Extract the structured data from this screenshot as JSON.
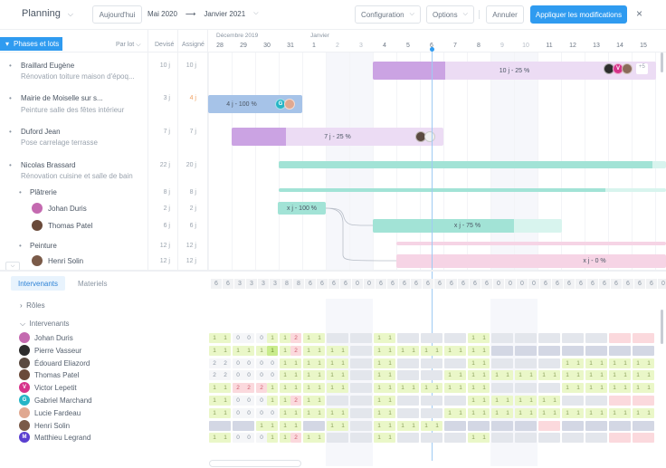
{
  "header": {
    "title": "Planning",
    "today_button": "Aujourd'hui",
    "range_start": "Mai 2020",
    "range_arrow": "⟶",
    "range_end": "Janvier 2021",
    "configuration_button": "Configuration",
    "options_button": "Options",
    "cancel_button": "Annuler",
    "apply_button": "Appliquer les modifications",
    "close_icon": "×"
  },
  "columns": {
    "phases_button": "Phases et lots",
    "group_by": "Par lot",
    "devise": "Devisé",
    "assigne": "Assigné",
    "month_dec": "Décembre 2019",
    "month_jan": "Janvier",
    "days": [
      {
        "d": "28",
        "weekend": false
      },
      {
        "d": "29",
        "weekend": false
      },
      {
        "d": "30",
        "weekend": false
      },
      {
        "d": "31",
        "weekend": false
      },
      {
        "d": "1",
        "weekend": false
      },
      {
        "d": "2",
        "weekend": true
      },
      {
        "d": "3",
        "weekend": true
      },
      {
        "d": "4",
        "weekend": false
      },
      {
        "d": "5",
        "weekend": false
      },
      {
        "d": "6",
        "weekend": false
      },
      {
        "d": "7",
        "weekend": false
      },
      {
        "d": "8",
        "weekend": false
      },
      {
        "d": "9",
        "weekend": true
      },
      {
        "d": "10",
        "weekend": true
      },
      {
        "d": "11",
        "weekend": false
      },
      {
        "d": "12",
        "weekend": false
      },
      {
        "d": "13",
        "weekend": false
      },
      {
        "d": "14",
        "weekend": false
      },
      {
        "d": "15",
        "weekend": false
      }
    ]
  },
  "projects": [
    {
      "title": "Braillard Eugène",
      "subtitle": "Rénovation toiture maison d'époq...",
      "devise": "10 j",
      "assigne": "10 j",
      "warn": false
    },
    {
      "title": "Mairie de Moiselle sur s...",
      "subtitle": "Peinture salle des fêtes intérieur",
      "devise": "3 j",
      "assigne": "4 j",
      "warn": true
    },
    {
      "title": "Duford Jean",
      "subtitle": "Pose carrelage terrasse",
      "devise": "7 j",
      "assigne": "7 j",
      "warn": false
    },
    {
      "title": "Nicolas Brassard",
      "subtitle": "Rénovation cuisine et salle de bain",
      "devise": "22 j",
      "assigne": "20 j",
      "warn": false
    }
  ],
  "lots": [
    {
      "title": "Plâtrerie",
      "devise": "8 j",
      "assigne": "8 j"
    },
    {
      "title": "Peinture",
      "devise": "12 j",
      "assigne": "12 j"
    }
  ],
  "lot_people": [
    {
      "name": "Johan Duris",
      "devise": "2 j",
      "assigne": "2 j"
    },
    {
      "name": "Thomas Patel",
      "devise": "6 j",
      "assigne": "6 j"
    },
    {
      "name": "Henri Solin",
      "devise": "12 j",
      "assigne": "12 j"
    }
  ],
  "bars": {
    "b1": "10 j - 25 %",
    "b1_more": "+5",
    "b2": "4 j - 100 %",
    "b3": "7 j - 25 %",
    "b4": "x j - 100 %",
    "b5": "x j - 75 %",
    "b6": "x j - 0 %"
  },
  "bottom": {
    "tab_intervenants": "Intervenants",
    "tab_materiels": "Materiels",
    "roles_label": "Rôles",
    "intervenants_label": "Intervenants",
    "totals": [
      "6",
      "6",
      "3",
      "3",
      "3",
      "3",
      "8",
      "8",
      "6",
      "6",
      "6",
      "6",
      "0",
      "0",
      "6",
      "6",
      "6",
      "6",
      "6",
      "6",
      "6",
      "6",
      "6",
      "6",
      "0",
      "0",
      "0",
      "0",
      "6",
      "6",
      "6",
      "6",
      "6",
      "6",
      "6",
      "6",
      "6",
      "6",
      "0"
    ]
  },
  "people": [
    {
      "name": "Johan Duris",
      "avatar_color": "#c46ab0",
      "initial": ""
    },
    {
      "name": "Pierre Vasseur",
      "avatar_color": "#2d2d2d",
      "initial": ""
    },
    {
      "name": "Édouard Eliazord",
      "avatar_color": "#5a4a40",
      "initial": ""
    },
    {
      "name": "Thomas Patel",
      "avatar_color": "#6a4a3a",
      "initial": ""
    },
    {
      "name": "Victor Lepetit",
      "avatar_color": "#d6338a",
      "initial": "V"
    },
    {
      "name": "Gabriel Marchand",
      "avatar_color": "#26b5c6",
      "initial": "G"
    },
    {
      "name": "Lucie Fardeau",
      "avatar_color": "#e0a890",
      "initial": ""
    },
    {
      "name": "Henri Solin",
      "avatar_color": "#7a5a48",
      "initial": ""
    },
    {
      "name": "Matthieu Legrand",
      "avatar_color": "#5a3fd0",
      "initial": "M"
    }
  ],
  "grid": [
    [
      "g:1 1",
      "w:0 0",
      "wg:0|1",
      "gr:1|2",
      "g:1 1",
      "l:",
      "l:",
      "g:1 1",
      "l:",
      "l:",
      "l:",
      "g:1 1",
      "l:",
      "l:",
      "l:",
      "l:",
      "l:",
      "r:",
      "r:"
    ],
    [
      "g:1 1",
      "g:1 1",
      "gG:1|1",
      "gr:1|2",
      "g:1 1",
      "g:1 1",
      "l:",
      "g:1 1",
      "g:1 1",
      "g:1 1",
      "g:1 1",
      "g:1 1",
      "d:",
      "d:",
      "d:",
      "d:",
      "d:",
      "d:",
      "d:"
    ],
    [
      "w:2 2",
      "w:0 0",
      "w:0 0",
      "g:1 1",
      "g:1 1",
      "g:1 1",
      "l:",
      "g:1 1",
      "l:",
      "l:",
      "l:",
      "g:1 1",
      "l:",
      "l:",
      "l:",
      "g:1 1",
      "g:1 1",
      "g:1 1",
      "g:1 1"
    ],
    [
      "w:2 2",
      "w:0 0",
      "w:0 0",
      "g:1 1",
      "g:1 1",
      "g:1 1",
      "l:",
      "g:1 1",
      "l:",
      "l:",
      "g:1 1",
      "g:1 1",
      "g:1 1",
      "g:1 1",
      "g:1 1",
      "g:1 1",
      "g:1 1",
      "g:1 1",
      "g:1 1"
    ],
    [
      "g:1 1",
      "r:2 2",
      "rg:2|1",
      "g:1 1",
      "g:1 1",
      "g:1 1",
      "l:",
      "g:1 1",
      "g:1 1",
      "g:1 1",
      "g:1 1",
      "g:1 1",
      "l:",
      "l:",
      "l:",
      "g:1 1",
      "g:1 1",
      "g:1 1",
      "g:1 1"
    ],
    [
      "g:1 1",
      "w:0 0",
      "wg:0|1",
      "gr:1|2",
      "g:1 1",
      "l:",
      "l:",
      "g:1 1",
      "l:",
      "l:",
      "l:",
      "g:1 1",
      "g:1 1",
      "g:1 1",
      "g:1 1",
      "l:",
      "l:",
      "r:",
      "r:"
    ],
    [
      "g:1 1",
      "w:0 0",
      "w:0 0",
      "g:1 1",
      "g:1 1",
      "g:1 1",
      "l:",
      "g:1 1",
      "l:",
      "l:",
      "g:1 1",
      "g:1 1",
      "g:1 1",
      "g:1 1",
      "g:1 1",
      "g:1 1",
      "g:1 1",
      "g:1 1",
      "g:1 1"
    ],
    [
      "d:",
      "d:",
      "g:1 1",
      "g:1 1",
      "d:",
      "g:1 1",
      "l:",
      "g:1 1",
      "g:1 1",
      "g:1 1",
      "d:",
      "d:",
      "d:",
      "d:",
      "r:",
      "d:",
      "d:",
      "d:",
      "d:"
    ],
    [
      "g:1 1",
      "w:0 0",
      "wg:0|1",
      "gr:1|2",
      "g:1 1",
      "l:",
      "l:",
      "g:1 1",
      "l:",
      "l:",
      "l:",
      "g:1 1",
      "l:",
      "l:",
      "l:",
      "l:",
      "l:",
      "r:",
      "r:"
    ]
  ]
}
